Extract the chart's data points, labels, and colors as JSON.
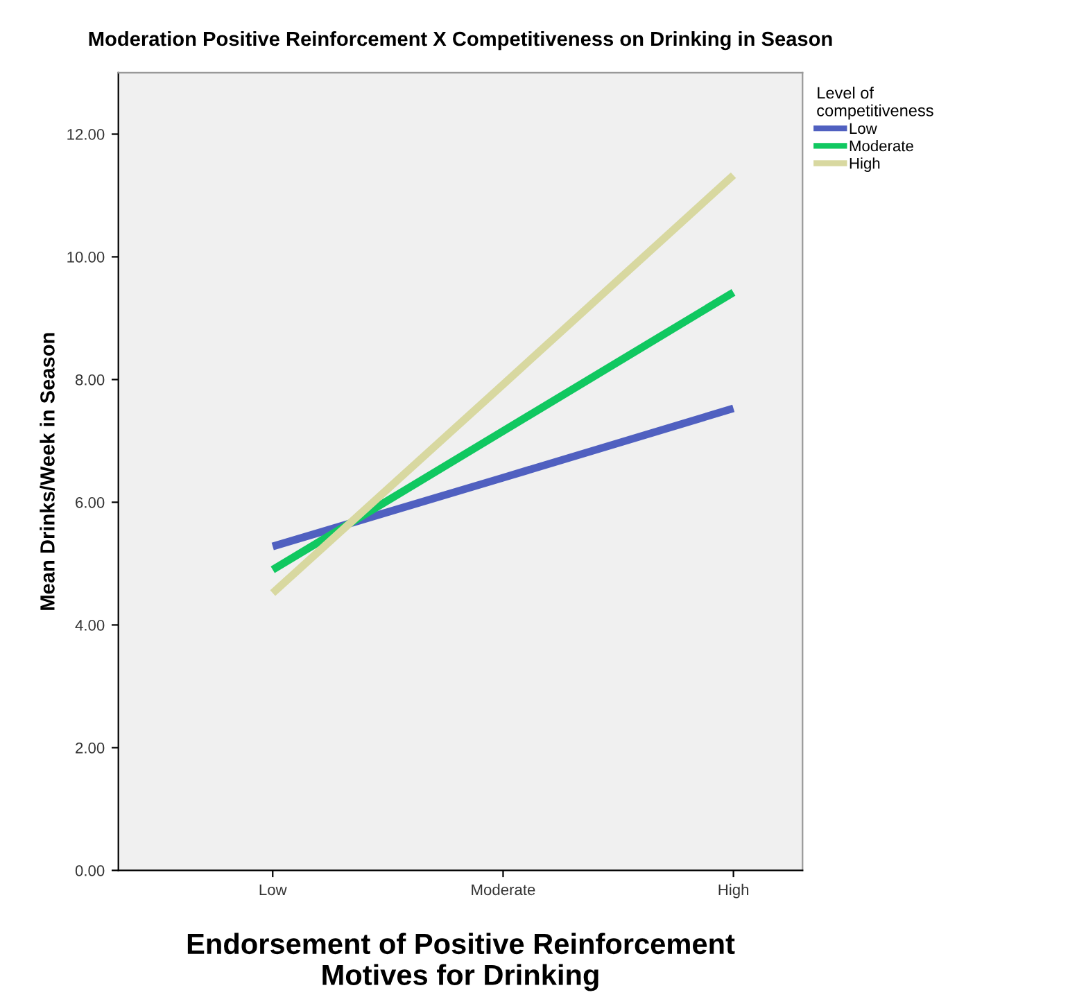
{
  "chart_data": {
    "type": "line",
    "title": "Moderation Positive Reinforcement X Competitiveness on Drinking in Season",
    "xlabel": "Endorsement of Positive Reinforcement\nMotives for Drinking",
    "ylabel": "Mean Drinks/Week in Season",
    "legend_title": "Level of\ncompetitiveness",
    "categories": [
      "Low",
      "Moderate",
      "High"
    ],
    "series": [
      {
        "name": "Low",
        "color": "#5060c0",
        "values": [
          5.28,
          6.4,
          7.53
        ]
      },
      {
        "name": "Moderate",
        "color": "#10c860",
        "values": [
          4.9,
          7.16,
          9.42
        ]
      },
      {
        "name": "High",
        "color": "#d8d8a0",
        "values": [
          4.52,
          7.92,
          11.33
        ]
      }
    ],
    "ylim": [
      0,
      13
    ],
    "yticks": [
      {
        "value": 0,
        "label": "0.00"
      },
      {
        "value": 2,
        "label": "2.00"
      },
      {
        "value": 4,
        "label": "4.00"
      },
      {
        "value": 6,
        "label": "6.00"
      },
      {
        "value": 8,
        "label": "8.00"
      },
      {
        "value": 10,
        "label": "10.00"
      },
      {
        "value": 12,
        "label": "12.00"
      }
    ],
    "grid": false,
    "legend": "top right",
    "marker": "none",
    "line_style": "solid"
  }
}
